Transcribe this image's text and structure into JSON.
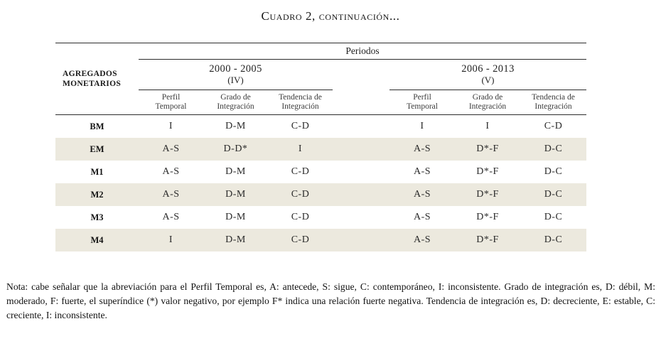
{
  "title": "Cuadro 2,  continuación...",
  "table": {
    "periods_header": "Periodos",
    "row_header": "AGREGADOS MONETARIOS",
    "groups": [
      {
        "range": "2000 - 2005",
        "roman": "(IV)"
      },
      {
        "range": "2006 - 2013",
        "roman": "(V)"
      }
    ],
    "subheaders": [
      {
        "line1": "Perfil",
        "line2": "Temporal"
      },
      {
        "line1": "Grado de",
        "line2": "Integración"
      },
      {
        "line1": "Tendencia de",
        "line2": "Integración"
      }
    ],
    "rows": [
      {
        "label": "BM",
        "p1": [
          "I",
          "D-M",
          "C-D"
        ],
        "p2": [
          "I",
          "I",
          "C-D"
        ]
      },
      {
        "label": "EM",
        "p1": [
          "A-S",
          "D-D*",
          "I"
        ],
        "p2": [
          "A-S",
          "D*-F",
          "D-C"
        ]
      },
      {
        "label": "M1",
        "p1": [
          "A-S",
          "D-M",
          "C-D"
        ],
        "p2": [
          "A-S",
          "D*-F",
          "D-C"
        ]
      },
      {
        "label": "M2",
        "p1": [
          "A-S",
          "D-M",
          "C-D"
        ],
        "p2": [
          "A-S",
          "D*-F",
          "D-C"
        ]
      },
      {
        "label": "M3",
        "p1": [
          "A-S",
          "D-M",
          "C-D"
        ],
        "p2": [
          "A-S",
          "D*-F",
          "D-C"
        ]
      },
      {
        "label": "M4",
        "p1": [
          "I",
          "D-M",
          "C-D"
        ],
        "p2": [
          "A-S",
          "D*-F",
          "D-C"
        ]
      }
    ]
  },
  "note": "Nota: cabe señalar que la abreviación para el Perfil Temporal es, A: antecede, S: sigue, C: contemporáneo, I: inconsistente. Grado de integración es, D: débil, M: moderado, F: fuerte, el superíndice (*) valor negativo, por ejemplo F* indica una relación fuerte negativa. Tendencia de integración es, D: decreciente, E: estable, C: creciente, I: inconsistente.",
  "colors": {
    "row_shade": "#ece9de",
    "rule": "#2c2c2c",
    "background": "#ffffff"
  }
}
